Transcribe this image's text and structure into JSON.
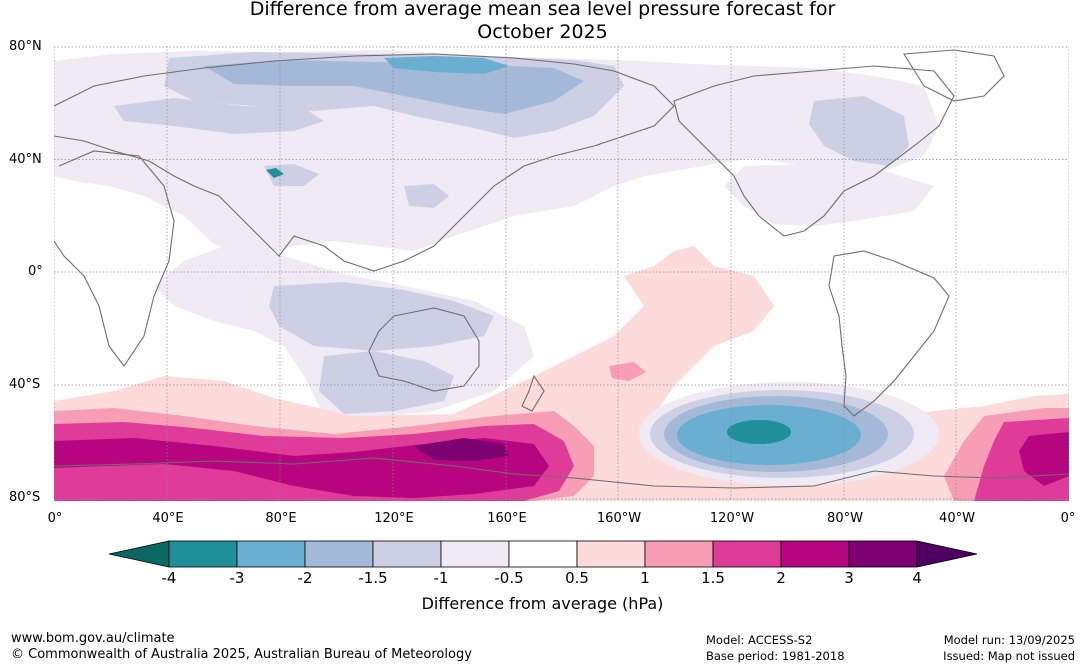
{
  "title_line1": "Difference from average mean sea level pressure forecast for",
  "title_line2": "October 2025",
  "lat_labels": [
    "80°N",
    "40°N",
    "0°",
    "40°S",
    "80°S"
  ],
  "lon_labels": [
    "0°",
    "40°E",
    "80°E",
    "120°E",
    "160°E",
    "160°W",
    "120°W",
    "80°W",
    "40°W",
    "0°"
  ],
  "colorbar": {
    "title": "Difference from average (hPa)",
    "ticks": [
      "-4",
      "-3",
      "-2",
      "-1.5",
      "-1",
      "-0.5",
      "0.5",
      "1",
      "1.5",
      "2",
      "3",
      "4"
    ],
    "colors": [
      "#0a6a63",
      "#1f8f98",
      "#6aaed2",
      "#a4b9d8",
      "#cdd0e5",
      "#efeaf3",
      "#ffffff",
      "#fddbdb",
      "#f79db5",
      "#df3b99",
      "#b7057f",
      "#7d0173",
      "#4e0163"
    ]
  },
  "footer": {
    "website": "www.bom.gov.au/climate",
    "copyright": "© Commonwealth of Australia 2025, Australian Bureau of Meteorology",
    "model": "Model: ACCESS-S2",
    "base_period": "Base period: 1981-2018",
    "model_run": "Model run: 13/09/2025",
    "issued": "Issued: Map not issued"
  }
}
